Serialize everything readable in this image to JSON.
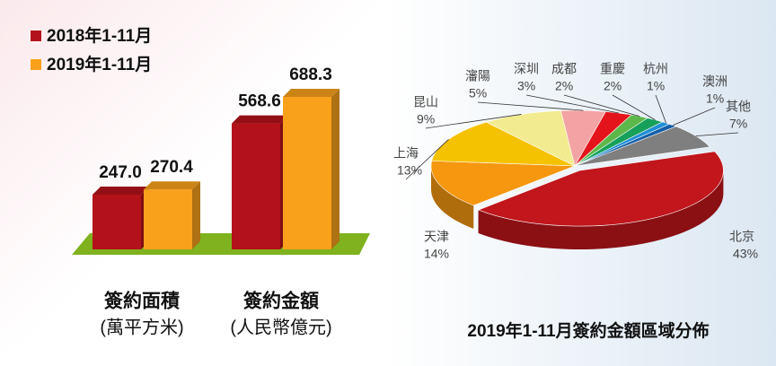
{
  "chart_data": [
    {
      "type": "bar3d",
      "categories": [
        "簽約面積",
        "簽約金額"
      ],
      "category_units": [
        "(萬平方米)",
        "(人民幣億元)"
      ],
      "series": [
        {
          "name": "2018年1-11月",
          "color": "#b3121a",
          "values": [
            247.0,
            568.6
          ],
          "value_labels": [
            "247.0",
            "568.6"
          ]
        },
        {
          "name": "2019年1-11月",
          "color": "#f9a11b",
          "values": [
            270.4,
            688.3
          ],
          "value_labels": [
            "270.4",
            "688.3"
          ]
        }
      ],
      "legend": "top-left"
    },
    {
      "type": "pie3d",
      "title": "2019年1-11月簽約金額區域分佈",
      "categories": [
        "北京",
        "天津",
        "上海",
        "昆山",
        "瀋陽",
        "深圳",
        "成都",
        "重慶",
        "杭州",
        "澳洲",
        "其他"
      ],
      "values": [
        43,
        14,
        13,
        9,
        5,
        3,
        2,
        2,
        1,
        1,
        7
      ],
      "value_labels": [
        "43%",
        "14%",
        "13%",
        "9%",
        "5%",
        "3%",
        "2%",
        "2%",
        "1%",
        "1%",
        "7%"
      ],
      "colors": [
        "#c0161c",
        "#f5970f",
        "#f5c200",
        "#f2eb90",
        "#f3a3a3",
        "#e3141b",
        "#5cb84a",
        "#16a05a",
        "#1e8fd6",
        "#1560a8",
        "#7f7f7f"
      ]
    }
  ]
}
